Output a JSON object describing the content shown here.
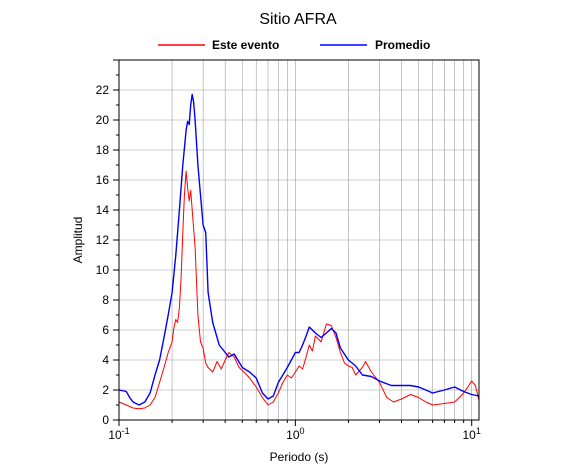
{
  "chart_data": {
    "type": "line",
    "title": "Sitio AFRA",
    "xlabel": "Periodo (s)",
    "ylabel": "Amplitud",
    "xscale": "log",
    "xlim": [
      0.1,
      11
    ],
    "ylim": [
      0,
      24
    ],
    "grid": true,
    "legend_position": "top",
    "y_ticks": [
      "0",
      "2",
      "4",
      "6",
      "8",
      "10",
      "12",
      "14",
      "16",
      "18",
      "20",
      "22"
    ],
    "x_tick_labels": [
      {
        "value": 0.1,
        "base": "10",
        "exp": "-1"
      },
      {
        "value": 1,
        "base": "10",
        "exp": "0"
      },
      {
        "value": 10,
        "base": "10",
        "exp": "1"
      }
    ],
    "series": [
      {
        "name": "Este evento",
        "color": "#ff0000",
        "points": [
          [
            0.1,
            1.2
          ],
          [
            0.105,
            1.1
          ],
          [
            0.11,
            1.0
          ],
          [
            0.115,
            0.9
          ],
          [
            0.12,
            0.8
          ],
          [
            0.13,
            0.75
          ],
          [
            0.14,
            0.8
          ],
          [
            0.15,
            1.0
          ],
          [
            0.16,
            1.5
          ],
          [
            0.17,
            2.5
          ],
          [
            0.18,
            3.5
          ],
          [
            0.19,
            4.5
          ],
          [
            0.2,
            5.2
          ],
          [
            0.205,
            6.2
          ],
          [
            0.21,
            6.7
          ],
          [
            0.215,
            6.5
          ],
          [
            0.22,
            7.5
          ],
          [
            0.225,
            9.5
          ],
          [
            0.23,
            12.5
          ],
          [
            0.235,
            15.0
          ],
          [
            0.24,
            16.6
          ],
          [
            0.245,
            15.5
          ],
          [
            0.25,
            14.6
          ],
          [
            0.255,
            15.3
          ],
          [
            0.26,
            14.0
          ],
          [
            0.27,
            11.5
          ],
          [
            0.28,
            7.0
          ],
          [
            0.29,
            5.2
          ],
          [
            0.3,
            4.8
          ],
          [
            0.31,
            3.8
          ],
          [
            0.32,
            3.5
          ],
          [
            0.34,
            3.2
          ],
          [
            0.36,
            3.9
          ],
          [
            0.38,
            3.4
          ],
          [
            0.4,
            4.0
          ],
          [
            0.42,
            4.5
          ],
          [
            0.45,
            4.2
          ],
          [
            0.48,
            3.5
          ],
          [
            0.5,
            3.3
          ],
          [
            0.55,
            2.8
          ],
          [
            0.6,
            2.2
          ],
          [
            0.65,
            1.5
          ],
          [
            0.7,
            1.0
          ],
          [
            0.75,
            1.2
          ],
          [
            0.8,
            1.8
          ],
          [
            0.85,
            2.5
          ],
          [
            0.9,
            3.0
          ],
          [
            0.95,
            2.8
          ],
          [
            1.0,
            3.2
          ],
          [
            1.05,
            3.6
          ],
          [
            1.1,
            3.4
          ],
          [
            1.15,
            4.2
          ],
          [
            1.2,
            5.0
          ],
          [
            1.25,
            4.6
          ],
          [
            1.3,
            5.6
          ],
          [
            1.4,
            5.2
          ],
          [
            1.5,
            6.4
          ],
          [
            1.6,
            6.3
          ],
          [
            1.7,
            5.5
          ],
          [
            1.8,
            4.5
          ],
          [
            1.9,
            3.8
          ],
          [
            2.0,
            3.6
          ],
          [
            2.1,
            3.5
          ],
          [
            2.2,
            3.0
          ],
          [
            2.4,
            3.5
          ],
          [
            2.5,
            3.9
          ],
          [
            2.7,
            3.2
          ],
          [
            3.0,
            2.5
          ],
          [
            3.3,
            1.5
          ],
          [
            3.6,
            1.2
          ],
          [
            4.0,
            1.4
          ],
          [
            4.5,
            1.7
          ],
          [
            5.0,
            1.5
          ],
          [
            5.5,
            1.2
          ],
          [
            6.0,
            1.0
          ],
          [
            7.0,
            1.1
          ],
          [
            8.0,
            1.2
          ],
          [
            8.5,
            1.5
          ],
          [
            9.0,
            1.8
          ],
          [
            9.5,
            2.2
          ],
          [
            10.0,
            2.6
          ],
          [
            10.5,
            2.3
          ],
          [
            11.0,
            1.3
          ]
        ]
      },
      {
        "name": "Promedio",
        "color": "#0000ff",
        "points": [
          [
            0.1,
            2.0
          ],
          [
            0.11,
            1.9
          ],
          [
            0.115,
            1.5
          ],
          [
            0.12,
            1.2
          ],
          [
            0.13,
            1.0
          ],
          [
            0.14,
            1.2
          ],
          [
            0.15,
            1.8
          ],
          [
            0.16,
            3.0
          ],
          [
            0.17,
            4.0
          ],
          [
            0.18,
            5.5
          ],
          [
            0.19,
            7.0
          ],
          [
            0.2,
            8.5
          ],
          [
            0.21,
            11.0
          ],
          [
            0.22,
            14.0
          ],
          [
            0.23,
            17.0
          ],
          [
            0.24,
            19.3
          ],
          [
            0.245,
            19.9
          ],
          [
            0.25,
            19.7
          ],
          [
            0.255,
            21.0
          ],
          [
            0.26,
            21.7
          ],
          [
            0.265,
            21.2
          ],
          [
            0.27,
            20.0
          ],
          [
            0.28,
            17.0
          ],
          [
            0.29,
            15.0
          ],
          [
            0.3,
            13.0
          ],
          [
            0.31,
            12.5
          ],
          [
            0.32,
            8.5
          ],
          [
            0.33,
            7.5
          ],
          [
            0.34,
            6.5
          ],
          [
            0.35,
            6.0
          ],
          [
            0.37,
            5.0
          ],
          [
            0.4,
            4.5
          ],
          [
            0.42,
            4.2
          ],
          [
            0.45,
            4.4
          ],
          [
            0.5,
            3.5
          ],
          [
            0.55,
            3.2
          ],
          [
            0.6,
            2.8
          ],
          [
            0.65,
            1.8
          ],
          [
            0.7,
            1.4
          ],
          [
            0.75,
            1.6
          ],
          [
            0.8,
            2.5
          ],
          [
            0.9,
            3.5
          ],
          [
            1.0,
            4.5
          ],
          [
            1.05,
            4.5
          ],
          [
            1.1,
            5.0
          ],
          [
            1.15,
            5.6
          ],
          [
            1.2,
            6.2
          ],
          [
            1.3,
            5.8
          ],
          [
            1.4,
            5.5
          ],
          [
            1.5,
            5.8
          ],
          [
            1.6,
            6.1
          ],
          [
            1.7,
            5.8
          ],
          [
            1.8,
            4.8
          ],
          [
            2.0,
            4.0
          ],
          [
            2.2,
            3.6
          ],
          [
            2.4,
            3.0
          ],
          [
            2.7,
            2.9
          ],
          [
            3.0,
            2.6
          ],
          [
            3.5,
            2.3
          ],
          [
            4.0,
            2.3
          ],
          [
            4.5,
            2.3
          ],
          [
            5.0,
            2.2
          ],
          [
            5.5,
            2.0
          ],
          [
            6.0,
            1.8
          ],
          [
            7.0,
            2.0
          ],
          [
            8.0,
            2.2
          ],
          [
            9.0,
            1.9
          ],
          [
            10.0,
            1.7
          ],
          [
            11.0,
            1.6
          ]
        ]
      }
    ]
  }
}
